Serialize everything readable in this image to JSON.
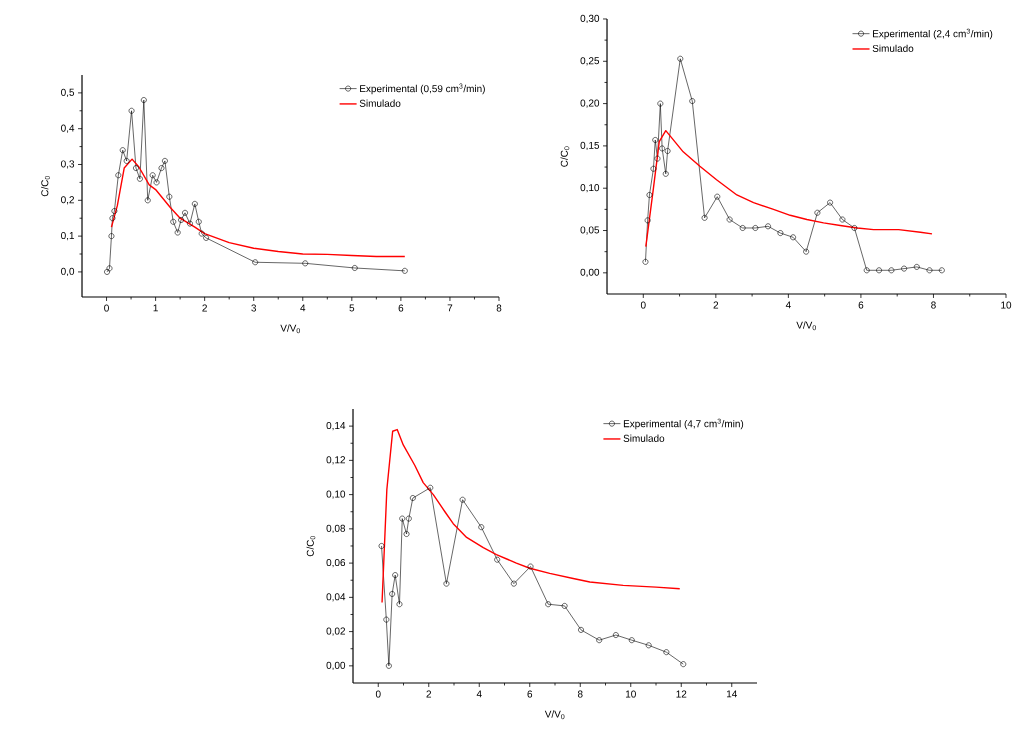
{
  "chart_data": [
    {
      "type": "line",
      "xlabel": "V/V$_{0}$",
      "ylabel": "C/C$_{0}$",
      "xlim": [
        -0.5,
        8
      ],
      "ylim": [
        -0.07,
        0.55
      ],
      "xticks": [
        0,
        1,
        2,
        3,
        4,
        5,
        6,
        7,
        8
      ],
      "yticks": [
        {
          "value": 0,
          "label": "0,0"
        },
        {
          "value": 0.1,
          "label": "0,1"
        },
        {
          "value": 0.2,
          "label": "0,2"
        },
        {
          "value": 0.3,
          "label": "0,3"
        },
        {
          "value": 0.4,
          "label": "0,4"
        },
        {
          "value": 0.5,
          "label": "0,5"
        }
      ],
      "legend": "top right",
      "series": [
        {
          "name": "Experimental (0,59 cm$^{3}$/min)",
          "color": "#000000",
          "marker": "circle",
          "x": [
            0.01,
            0.06,
            0.1,
            0.12,
            0.16,
            0.24,
            0.33,
            0.41,
            0.51,
            0.6,
            0.68,
            0.76,
            0.84,
            0.94,
            1.02,
            1.12,
            1.19,
            1.28,
            1.36,
            1.45,
            1.52,
            1.6,
            1.7,
            1.8,
            1.88,
            1.94,
            2.03,
            3.03,
            4.05,
            5.06,
            6.08
          ],
          "values": [
            0.0,
            0.01,
            0.1,
            0.15,
            0.17,
            0.27,
            0.34,
            0.31,
            0.45,
            0.29,
            0.26,
            0.48,
            0.2,
            0.27,
            0.25,
            0.29,
            0.31,
            0.21,
            0.14,
            0.11,
            0.145,
            0.165,
            0.135,
            0.19,
            0.14,
            0.107,
            0.095,
            0.027,
            0.024,
            0.011,
            0.003
          ]
        },
        {
          "name": "Simulado",
          "color": "#ff0000",
          "marker": "none",
          "x": [
            0.1,
            0.22,
            0.36,
            0.52,
            0.66,
            0.87,
            1.0,
            1.3,
            1.5,
            1.8,
            2.0,
            2.5,
            3.0,
            3.5,
            4.0,
            4.5,
            5.0,
            5.5,
            6.08
          ],
          "values": [
            0.125,
            0.185,
            0.29,
            0.315,
            0.293,
            0.243,
            0.23,
            0.18,
            0.15,
            0.125,
            0.107,
            0.082,
            0.066,
            0.057,
            0.05,
            0.049,
            0.046,
            0.043,
            0.043
          ]
        }
      ]
    },
    {
      "type": "line",
      "xlabel": "V/V$_{0}$",
      "ylabel": "C/C$_{0}$",
      "xlim": [
        -1,
        10
      ],
      "ylim": [
        -0.025,
        0.3
      ],
      "xticks": [
        0,
        2,
        4,
        6,
        8,
        10
      ],
      "yticks": [
        {
          "value": 0,
          "label": "0,00"
        },
        {
          "value": 0.05,
          "label": "0,05"
        },
        {
          "value": 0.1,
          "label": "0,10"
        },
        {
          "value": 0.15,
          "label": "0,15"
        },
        {
          "value": 0.2,
          "label": "0,20"
        },
        {
          "value": 0.25,
          "label": "0,25"
        },
        {
          "value": 0.3,
          "label": "0,30"
        }
      ],
      "legend": "top right",
      "series": [
        {
          "name": "Experimental (2,4 cm$^{3}$/min)",
          "color": "#000000",
          "marker": "circle",
          "x": [
            0.06,
            0.12,
            0.17,
            0.28,
            0.33,
            0.39,
            0.47,
            0.52,
            0.62,
            0.67,
            1.02,
            1.35,
            1.69,
            2.04,
            2.38,
            2.74,
            3.09,
            3.44,
            3.78,
            4.13,
            4.49,
            4.8,
            5.15,
            5.49,
            5.82,
            6.16,
            6.5,
            6.84,
            7.19,
            7.54,
            7.89,
            8.23
          ],
          "values": [
            0.013,
            0.062,
            0.092,
            0.123,
            0.157,
            0.135,
            0.2,
            0.147,
            0.117,
            0.144,
            0.253,
            0.203,
            0.065,
            0.09,
            0.063,
            0.053,
            0.053,
            0.055,
            0.047,
            0.042,
            0.025,
            0.071,
            0.083,
            0.063,
            0.053,
            0.003,
            0.003,
            0.003,
            0.005,
            0.007,
            0.003,
            0.003
          ]
        },
        {
          "name": "Simulado",
          "color": "#ff0000",
          "marker": "none",
          "x": [
            0.07,
            0.28,
            0.44,
            0.62,
            1.1,
            1.56,
            2.02,
            2.58,
            3.04,
            3.59,
            4.05,
            4.51,
            4.97,
            5.43,
            5.9,
            6.35,
            7.04,
            7.64,
            7.96
          ],
          "values": [
            0.031,
            0.1,
            0.155,
            0.168,
            0.143,
            0.126,
            0.11,
            0.092,
            0.083,
            0.075,
            0.068,
            0.063,
            0.059,
            0.056,
            0.053,
            0.051,
            0.051,
            0.048,
            0.046
          ]
        }
      ]
    },
    {
      "type": "line",
      "xlabel": "V/V$_{0}$",
      "ylabel": "C/C$_{0}$",
      "xlim": [
        -1,
        15
      ],
      "ylim": [
        -0.01,
        0.15
      ],
      "xticks": [
        0,
        2,
        4,
        6,
        8,
        10,
        12,
        14
      ],
      "yticks": [
        {
          "value": 0,
          "label": "0,00"
        },
        {
          "value": 0.02,
          "label": "0,02"
        },
        {
          "value": 0.04,
          "label": "0,04"
        },
        {
          "value": 0.06,
          "label": "0,06"
        },
        {
          "value": 0.08,
          "label": "0,08"
        },
        {
          "value": 0.1,
          "label": "0,10"
        },
        {
          "value": 0.12,
          "label": "0,12"
        },
        {
          "value": 0.14,
          "label": "0,14"
        }
      ],
      "legend": "top right",
      "series": [
        {
          "name": "Experimental (4,7 cm$^{3}$/min)",
          "color": "#000000",
          "marker": "circle",
          "x": [
            0.13,
            0.32,
            0.42,
            0.55,
            0.67,
            0.84,
            0.95,
            1.12,
            1.21,
            1.37,
            2.06,
            2.7,
            3.34,
            4.08,
            4.71,
            5.37,
            6.03,
            6.73,
            7.38,
            8.03,
            8.75,
            9.41,
            10.04,
            10.71,
            11.41,
            12.08
          ],
          "values": [
            0.07,
            0.027,
            0.0,
            0.042,
            0.053,
            0.036,
            0.086,
            0.077,
            0.086,
            0.098,
            0.104,
            0.048,
            0.097,
            0.081,
            0.062,
            0.048,
            0.058,
            0.036,
            0.035,
            0.021,
            0.015,
            0.018,
            0.015,
            0.012,
            0.008,
            0.001
          ]
        },
        {
          "name": "Simulado",
          "color": "#ff0000",
          "marker": "none",
          "x": [
            0.15,
            0.34,
            0.57,
            0.75,
            0.99,
            1.45,
            1.78,
            2.18,
            2.64,
            2.97,
            3.5,
            4.16,
            4.68,
            5.47,
            6.0,
            6.79,
            7.72,
            8.38,
            9.7,
            11.0,
            11.94
          ],
          "values": [
            0.037,
            0.103,
            0.137,
            0.138,
            0.129,
            0.117,
            0.107,
            0.1,
            0.09,
            0.083,
            0.075,
            0.069,
            0.065,
            0.06,
            0.057,
            0.054,
            0.051,
            0.049,
            0.047,
            0.046,
            0.045
          ]
        }
      ]
    }
  ]
}
